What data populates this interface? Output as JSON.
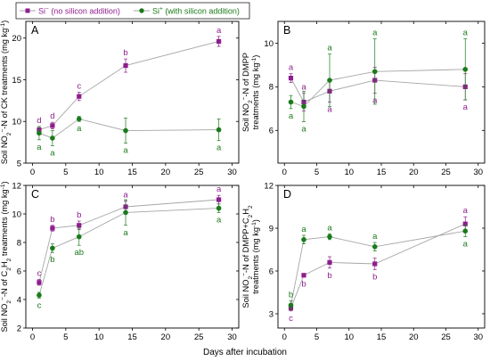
{
  "legend": {
    "items": [
      {
        "base": "Si",
        "sup": "−",
        "text": " (no silicon addition)",
        "color": "#8e1d8e"
      },
      {
        "base": "Si",
        "sup": "+",
        "text": " (with silicon addition)",
        "color": "#1a7a1a"
      }
    ]
  },
  "xlabel": "Days after incubation",
  "colors": {
    "no_si": "#8e1d8e",
    "with_si": "#1a7a1a",
    "line": "#a6a6a6"
  },
  "chart_data": [
    {
      "type": "line",
      "panel": "A",
      "xlim": [
        -1,
        31
      ],
      "xticks": [
        0,
        5,
        10,
        15,
        20,
        25,
        30
      ],
      "ylim": [
        5,
        22
      ],
      "yticks": [
        5,
        10,
        15,
        20
      ],
      "ylabel_lines": [
        [
          "Soil NO",
          {
            "sub": "2"
          },
          {
            "sup": "−"
          },
          "-N of CK treatments (mg kg",
          {
            "sup": "-1"
          },
          ")"
        ]
      ],
      "series": [
        {
          "name": "Si− (no silicon addition)",
          "x": [
            1,
            3,
            7,
            14,
            28
          ],
          "y": [
            9.0,
            9.5,
            13.0,
            16.7,
            19.6
          ],
          "err": [
            0.4,
            0.4,
            0.5,
            0.8,
            0.6
          ],
          "letters": [
            "d",
            "d",
            "c",
            "b",
            "a"
          ]
        },
        {
          "name": "Si+ (with silicon addition)",
          "x": [
            1,
            3,
            7,
            14,
            28
          ],
          "y": [
            8.6,
            8.0,
            10.3,
            8.9,
            9.0
          ],
          "err": [
            0.8,
            0.9,
            0.3,
            1.5,
            1.3
          ],
          "letters": [
            "a",
            "a",
            "a",
            "a",
            "a"
          ]
        }
      ]
    },
    {
      "type": "line",
      "panel": "B",
      "xlim": [
        -1,
        31
      ],
      "xticks": [
        0,
        5,
        10,
        15,
        20,
        25,
        30
      ],
      "ylim": [
        4.5,
        11
      ],
      "yticks": [
        6,
        8,
        10
      ],
      "ylabel_lines": [
        [
          "Soil NO",
          {
            "sub": "2"
          },
          {
            "sup": "−"
          },
          "-N of DMPP"
        ],
        [
          "treatments (mg kg",
          {
            "sup": "-1"
          },
          ")"
        ]
      ],
      "series": [
        {
          "name": "Si− (no silicon addition)",
          "x": [
            1,
            3,
            7,
            14,
            28
          ],
          "y": [
            8.4,
            7.3,
            7.8,
            8.3,
            8.0
          ],
          "err": [
            0.2,
            0.4,
            0.5,
            0.6,
            0.6
          ],
          "letters": [
            "a",
            "a",
            "a",
            "a",
            "a"
          ]
        },
        {
          "name": "Si+ (with silicon addition)",
          "x": [
            1,
            3,
            7,
            14,
            28
          ],
          "y": [
            7.3,
            7.1,
            8.3,
            8.7,
            8.8
          ],
          "err": [
            0.3,
            0.7,
            1.2,
            1.5,
            1.4
          ],
          "letters": [
            "a",
            "a",
            "a",
            "a",
            "a"
          ]
        }
      ]
    },
    {
      "type": "line",
      "panel": "C",
      "xlim": [
        -1,
        31
      ],
      "xticks": [
        0,
        5,
        10,
        15,
        20,
        25,
        30
      ],
      "ylim": [
        2,
        12
      ],
      "yticks": [
        2,
        4,
        6,
        8,
        10,
        12
      ],
      "ylabel_lines": [
        [
          "Soil NO",
          {
            "sub": "2"
          },
          {
            "sup": "−"
          },
          "-N of C",
          {
            "sub": "2"
          },
          "H",
          {
            "sub": "2"
          },
          " treatments (mg kg",
          {
            "sup": "-1"
          },
          ")"
        ]
      ],
      "series": [
        {
          "name": "Si− (no silicon addition)",
          "x": [
            1,
            3,
            7,
            14,
            28
          ],
          "y": [
            5.2,
            9.0,
            9.2,
            10.5,
            11.0
          ],
          "err": [
            0.2,
            0.2,
            0.3,
            0.4,
            0.3
          ],
          "letters": [
            "c",
            "b",
            "b",
            "a",
            "a"
          ]
        },
        {
          "name": "Si+ (with silicon addition)",
          "x": [
            1,
            3,
            7,
            14,
            28
          ],
          "y": [
            4.3,
            7.6,
            8.4,
            10.1,
            10.4
          ],
          "err": [
            0.2,
            0.3,
            0.6,
            0.9,
            0.3
          ],
          "letters": [
            "c",
            "b",
            "ab",
            "a",
            "a"
          ]
        }
      ]
    },
    {
      "type": "line",
      "panel": "D",
      "xlim": [
        -1,
        31
      ],
      "xticks": [
        0,
        5,
        10,
        15,
        20,
        25,
        30
      ],
      "ylim": [
        2,
        12
      ],
      "yticks": [
        3,
        6,
        9,
        12
      ],
      "ylabel_lines": [
        [
          "Soil NO",
          {
            "sub": "2"
          },
          {
            "sup": "−"
          },
          "-N of DMPP+C",
          {
            "sub": "2"
          },
          "H",
          {
            "sub": "2"
          }
        ],
        [
          "treatments (mg kg",
          {
            "sup": "-1"
          },
          ")"
        ]
      ],
      "series": [
        {
          "name": "Si− (no silicon addition)",
          "x": [
            1,
            3,
            7,
            14,
            28
          ],
          "y": [
            3.4,
            5.7,
            6.6,
            6.5,
            9.3
          ],
          "err": [
            0.2,
            0.1,
            0.4,
            0.4,
            0.5
          ],
          "letters": [
            "c",
            "b",
            "b",
            "b",
            "a"
          ]
        },
        {
          "name": "Si+ (with silicon addition)",
          "x": [
            1,
            3,
            7,
            14,
            28
          ],
          "y": [
            3.6,
            8.2,
            8.4,
            7.7,
            8.8
          ],
          "err": [
            0.3,
            0.3,
            0.2,
            0.3,
            0.4
          ],
          "letters": [
            "b",
            "a",
            "a",
            "a",
            "a"
          ]
        }
      ]
    }
  ]
}
